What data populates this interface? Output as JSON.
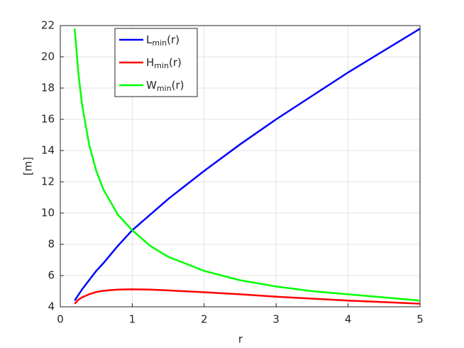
{
  "chart_data": {
    "type": "line",
    "x": [
      0.2,
      0.25,
      0.3,
      0.4,
      0.5,
      0.6,
      0.8,
      1,
      1.25,
      1.5,
      2,
      2.5,
      3,
      3.5,
      4,
      4.5,
      5
    ],
    "series": [
      {
        "name": "Lmin(r)",
        "color": "#0000ff",
        "values": [
          4.4,
          4.75,
          5.1,
          5.7,
          6.3,
          6.8,
          7.9,
          8.9,
          9.9,
          10.9,
          12.7,
          14.4,
          16.0,
          17.5,
          19.0,
          20.4,
          21.8
        ]
      },
      {
        "name": "Hmin(r)",
        "color": "#ff0000",
        "values": [
          4.2,
          4.45,
          4.6,
          4.8,
          4.95,
          5.03,
          5.1,
          5.12,
          5.1,
          5.05,
          4.93,
          4.8,
          4.65,
          4.52,
          4.4,
          4.3,
          4.2
        ]
      },
      {
        "name": "Wmin(r)",
        "color": "#00ff00",
        "values": [
          21.8,
          19.0,
          17.0,
          14.4,
          12.7,
          11.5,
          9.9,
          8.9,
          7.9,
          7.2,
          6.3,
          5.7,
          5.3,
          5.0,
          4.8,
          4.6,
          4.4
        ]
      }
    ],
    "xlabel": "r",
    "ylabel": "[m]",
    "xlim": [
      0,
      5
    ],
    "ylim": [
      4,
      22
    ],
    "xticks": [
      0,
      1,
      2,
      3,
      4,
      5
    ],
    "yticks": [
      4,
      6,
      8,
      10,
      12,
      14,
      16,
      18,
      20,
      22
    ],
    "grid": true,
    "legend": "upper left"
  }
}
